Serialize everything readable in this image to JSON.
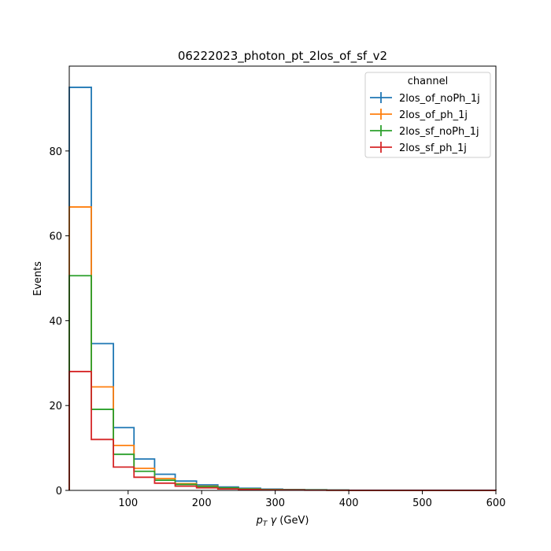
{
  "chart_data": {
    "type": "histogram-step",
    "title": "06222023_photon_pt_2los_of_sf_v2",
    "xlabel": "p_T γ (GeV)",
    "ylabel": "Events",
    "xlim": [
      20,
      600
    ],
    "ylim": [
      0,
      100
    ],
    "xticks": [
      100,
      200,
      300,
      400,
      500,
      600
    ],
    "yticks": [
      0,
      20,
      40,
      60,
      80
    ],
    "bin_edges": [
      20,
      50,
      80,
      108,
      136,
      164,
      193,
      222,
      250,
      280,
      310,
      340,
      370,
      400,
      600
    ],
    "legend": {
      "title": "channel",
      "location": "upper right"
    },
    "grid": false,
    "series": [
      {
        "name": "2los_of_noPh_1j",
        "color": "#1f77b4",
        "values": [
          95.0,
          34.6,
          14.8,
          7.4,
          3.8,
          2.2,
          1.3,
          0.8,
          0.5,
          0.3,
          0.2,
          0.15,
          0.1,
          0.05
        ]
      },
      {
        "name": "2los_of_ph_1j",
        "color": "#ff7f0e",
        "values": [
          66.8,
          24.4,
          10.6,
          5.2,
          2.8,
          1.6,
          1.0,
          0.6,
          0.35,
          0.2,
          0.12,
          0.08,
          0.05,
          0.02
        ]
      },
      {
        "name": "2los_sf_noPh_1j",
        "color": "#2ca02c",
        "values": [
          50.6,
          19.1,
          8.5,
          4.5,
          2.4,
          1.4,
          0.9,
          0.6,
          0.35,
          0.2,
          0.15,
          0.1,
          0.05,
          0.02
        ]
      },
      {
        "name": "2los_sf_ph_1j",
        "color": "#d62728",
        "values": [
          28.0,
          12.0,
          5.5,
          3.1,
          1.7,
          1.0,
          0.6,
          0.35,
          0.2,
          0.12,
          0.08,
          0.05,
          0.03,
          0.01
        ]
      }
    ]
  }
}
